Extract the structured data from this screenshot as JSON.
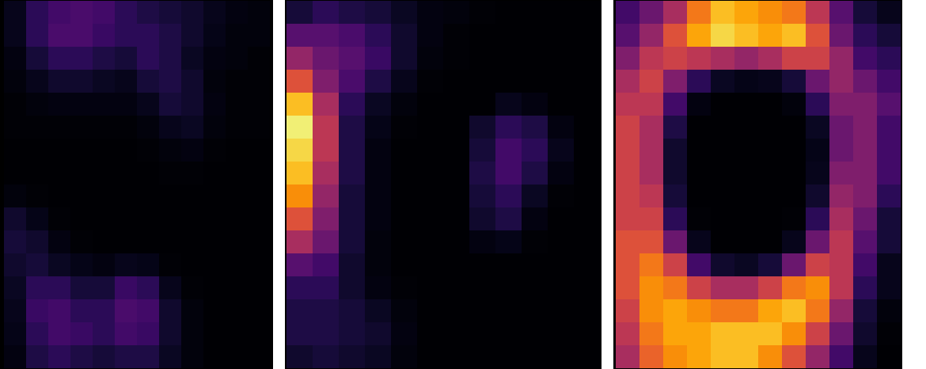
{
  "chart_data": [
    {
      "type": "heatmap",
      "color": "inferno",
      "tick_labels": false,
      "color_range": [
        0,
        1
      ],
      "cells": [
        [
          0.05,
          0.15,
          0.2,
          0.22,
          0.2,
          0.15,
          0.12,
          0.1,
          0.08,
          0.05,
          0.03,
          0.02
        ],
        [
          0.05,
          0.15,
          0.22,
          0.22,
          0.18,
          0.15,
          0.15,
          0.12,
          0.08,
          0.04,
          0.02,
          0.02
        ],
        [
          0.03,
          0.1,
          0.15,
          0.15,
          0.12,
          0.1,
          0.15,
          0.12,
          0.06,
          0.03,
          0.02,
          0.01
        ],
        [
          0.02,
          0.05,
          0.08,
          0.08,
          0.06,
          0.05,
          0.1,
          0.12,
          0.08,
          0.02,
          0.01,
          0.01
        ],
        [
          0.01,
          0.02,
          0.03,
          0.03,
          0.03,
          0.03,
          0.05,
          0.1,
          0.08,
          0.03,
          0.01,
          0.01
        ],
        [
          0.01,
          0.01,
          0.01,
          0.01,
          0.01,
          0.01,
          0.02,
          0.05,
          0.06,
          0.02,
          0.01,
          0.01
        ],
        [
          0,
          0,
          0,
          0,
          0,
          0,
          0.01,
          0.02,
          0.03,
          0.01,
          0,
          0
        ],
        [
          0,
          0,
          0,
          0,
          0,
          0,
          0,
          0.01,
          0.01,
          0,
          0,
          0
        ],
        [
          0.02,
          0.01,
          0,
          0,
          0,
          0,
          0,
          0,
          0,
          0,
          0,
          0
        ],
        [
          0.08,
          0.04,
          0.01,
          0,
          0,
          0,
          0,
          0,
          0,
          0,
          0,
          0
        ],
        [
          0.1,
          0.08,
          0.03,
          0.01,
          0,
          0,
          0,
          0,
          0,
          0,
          0,
          0
        ],
        [
          0.08,
          0.1,
          0.06,
          0.04,
          0.03,
          0.05,
          0.04,
          0.01,
          0,
          0,
          0,
          0
        ],
        [
          0.06,
          0.15,
          0.15,
          0.1,
          0.1,
          0.18,
          0.15,
          0.05,
          0.01,
          0,
          0,
          0
        ],
        [
          0.05,
          0.18,
          0.2,
          0.15,
          0.15,
          0.22,
          0.2,
          0.08,
          0.02,
          0,
          0,
          0
        ],
        [
          0.04,
          0.15,
          0.2,
          0.18,
          0.15,
          0.2,
          0.18,
          0.08,
          0.02,
          0,
          0,
          0
        ],
        [
          0.03,
          0.12,
          0.15,
          0.12,
          0.1,
          0.12,
          0.12,
          0.06,
          0.02,
          0,
          0,
          0
        ]
      ]
    },
    {
      "type": "heatmap",
      "color": "inferno",
      "tick_labels": false,
      "color_range": [
        0,
        1
      ],
      "cells": [
        [
          0.1,
          0.15,
          0.12,
          0.1,
          0.06,
          0.03,
          0.02,
          0.01,
          0,
          0,
          0,
          0
        ],
        [
          0.25,
          0.25,
          0.22,
          0.15,
          0.08,
          0.03,
          0.01,
          0,
          0,
          0,
          0,
          0
        ],
        [
          0.4,
          0.3,
          0.25,
          0.18,
          0.08,
          0.02,
          0.01,
          0,
          0,
          0,
          0,
          0
        ],
        [
          0.6,
          0.35,
          0.22,
          0.12,
          0.05,
          0.01,
          0,
          0,
          0,
          0,
          0,
          0
        ],
        [
          0.85,
          0.45,
          0.15,
          0.06,
          0.02,
          0,
          0,
          0,
          0.05,
          0.03,
          0,
          0
        ],
        [
          0.95,
          0.5,
          0.12,
          0.04,
          0.01,
          0,
          0,
          0.08,
          0.15,
          0.12,
          0.03,
          0
        ],
        [
          0.9,
          0.5,
          0.12,
          0.03,
          0,
          0,
          0,
          0.1,
          0.2,
          0.15,
          0.05,
          0
        ],
        [
          0.85,
          0.45,
          0.12,
          0.03,
          0,
          0,
          0,
          0.12,
          0.2,
          0.12,
          0.03,
          0
        ],
        [
          0.75,
          0.4,
          0.1,
          0.03,
          0,
          0,
          0,
          0.1,
          0.15,
          0.06,
          0.01,
          0
        ],
        [
          0.6,
          0.35,
          0.1,
          0.03,
          0,
          0,
          0,
          0.08,
          0.12,
          0.03,
          0,
          0
        ],
        [
          0.45,
          0.3,
          0.1,
          0.02,
          0,
          0,
          0,
          0.03,
          0.04,
          0.01,
          0,
          0
        ],
        [
          0.25,
          0.2,
          0.08,
          0.02,
          0,
          0,
          0,
          0,
          0,
          0,
          0,
          0
        ],
        [
          0.15,
          0.15,
          0.08,
          0.03,
          0.01,
          0,
          0,
          0,
          0,
          0,
          0,
          0
        ],
        [
          0.12,
          0.12,
          0.1,
          0.06,
          0.02,
          0,
          0,
          0,
          0,
          0,
          0,
          0
        ],
        [
          0.12,
          0.12,
          0.1,
          0.08,
          0.03,
          0,
          0,
          0,
          0,
          0,
          0,
          0
        ],
        [
          0.08,
          0.1,
          0.08,
          0.06,
          0.02,
          0,
          0,
          0,
          0,
          0,
          0,
          0
        ]
      ]
    },
    {
      "type": "heatmap",
      "color": "inferno",
      "tick_labels": false,
      "color_range": [
        0,
        1
      ],
      "cells": [
        [
          0.2,
          0.3,
          0.45,
          0.7,
          0.85,
          0.8,
          0.75,
          0.7,
          0.5,
          0.25,
          0.1,
          0.05
        ],
        [
          0.25,
          0.4,
          0.6,
          0.8,
          0.9,
          0.85,
          0.8,
          0.85,
          0.6,
          0.3,
          0.15,
          0.1
        ],
        [
          0.35,
          0.5,
          0.55,
          0.5,
          0.45,
          0.4,
          0.45,
          0.55,
          0.55,
          0.4,
          0.2,
          0.15
        ],
        [
          0.45,
          0.55,
          0.35,
          0.15,
          0.06,
          0.04,
          0.05,
          0.1,
          0.3,
          0.4,
          0.3,
          0.2
        ],
        [
          0.5,
          0.5,
          0.2,
          0.03,
          0,
          0,
          0,
          0.02,
          0.15,
          0.35,
          0.35,
          0.25
        ],
        [
          0.55,
          0.45,
          0.12,
          0,
          0,
          0,
          0,
          0,
          0.06,
          0.3,
          0.35,
          0.2
        ],
        [
          0.55,
          0.45,
          0.08,
          0,
          0,
          0,
          0,
          0,
          0.04,
          0.3,
          0.35,
          0.2
        ],
        [
          0.55,
          0.45,
          0.08,
          0,
          0,
          0,
          0,
          0,
          0.05,
          0.35,
          0.35,
          0.2
        ],
        [
          0.55,
          0.5,
          0.1,
          0,
          0,
          0,
          0,
          0,
          0.08,
          0.4,
          0.35,
          0.15
        ],
        [
          0.55,
          0.55,
          0.15,
          0.01,
          0,
          0,
          0,
          0.01,
          0.15,
          0.45,
          0.3,
          0.1
        ],
        [
          0.6,
          0.6,
          0.3,
          0.05,
          0,
          0,
          0,
          0.05,
          0.3,
          0.5,
          0.25,
          0.1
        ],
        [
          0.6,
          0.7,
          0.55,
          0.2,
          0.08,
          0.06,
          0.1,
          0.3,
          0.55,
          0.5,
          0.2,
          0.05
        ],
        [
          0.6,
          0.75,
          0.7,
          0.55,
          0.45,
          0.45,
          0.55,
          0.7,
          0.75,
          0.5,
          0.15,
          0.05
        ],
        [
          0.55,
          0.75,
          0.8,
          0.75,
          0.7,
          0.7,
          0.8,
          0.85,
          0.7,
          0.4,
          0.1,
          0.02
        ],
        [
          0.5,
          0.7,
          0.8,
          0.8,
          0.85,
          0.85,
          0.85,
          0.75,
          0.55,
          0.3,
          0.08,
          0.01
        ],
        [
          0.45,
          0.65,
          0.75,
          0.8,
          0.85,
          0.85,
          0.75,
          0.6,
          0.4,
          0.2,
          0.05,
          0
        ]
      ]
    }
  ]
}
